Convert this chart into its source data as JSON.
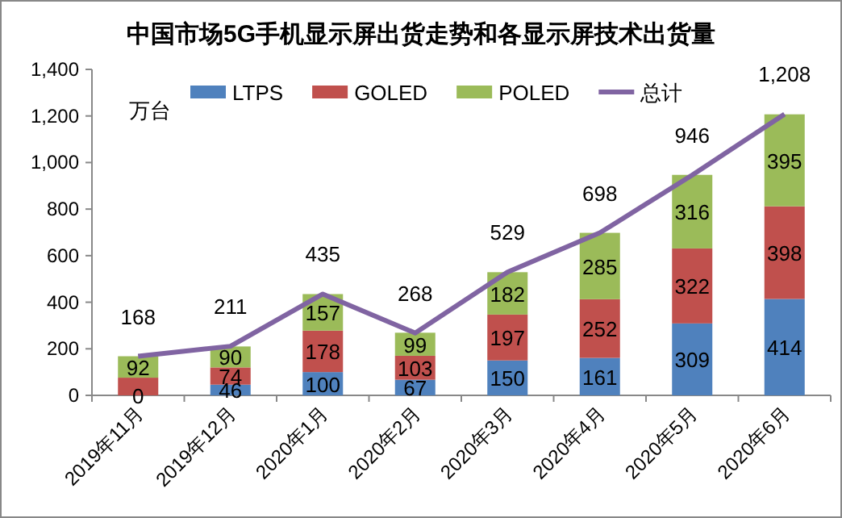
{
  "chart_data": {
    "type": "bar",
    "stacked": true,
    "title": "中国市场5G手机显示屏出货走势和各显示屏技术出货量",
    "ylabel": "万台",
    "categories": [
      "2019年11月",
      "2019年12月",
      "2020年1月",
      "2020年2月",
      "2020年3月",
      "2020年4月",
      "2020年5月",
      "2020年6月"
    ],
    "series": [
      {
        "name": "LTPS",
        "color": "#4f81bd",
        "values": [
          0,
          46,
          100,
          67,
          150,
          161,
          309,
          414
        ],
        "value_labels": [
          "0",
          "46",
          "100",
          "67",
          "150",
          "161",
          "309",
          "414"
        ]
      },
      {
        "name": "GOLED",
        "color": "#c0504d",
        "values": [
          76,
          74,
          178,
          103,
          197,
          252,
          322,
          398
        ],
        "value_labels": [
          null,
          "74",
          "178",
          "103",
          "197",
          "252",
          "322",
          "398"
        ]
      },
      {
        "name": "POLED",
        "color": "#9bbb59",
        "values": [
          92,
          90,
          157,
          99,
          182,
          285,
          316,
          395
        ],
        "value_labels": [
          "92",
          "90",
          "157",
          "99",
          "182",
          "285",
          "316",
          "395"
        ]
      },
      {
        "name": "总计",
        "type": "line",
        "color": "#8064a2",
        "marker": "none",
        "values": [
          168,
          211,
          435,
          268,
          529,
          698,
          946,
          1208
        ],
        "value_labels": [
          "168",
          "211",
          "435",
          "268",
          "529",
          "698",
          "946",
          "1,208"
        ]
      }
    ],
    "ylim": [
      0,
      1400
    ],
    "yticks": [
      0,
      200,
      400,
      600,
      800,
      {
        "value": 1000,
        "label": "1,000"
      },
      {
        "value": 1200,
        "label": "1,200"
      },
      {
        "value": 1400,
        "label": "1,400"
      }
    ],
    "legend": "top",
    "grid": false
  }
}
